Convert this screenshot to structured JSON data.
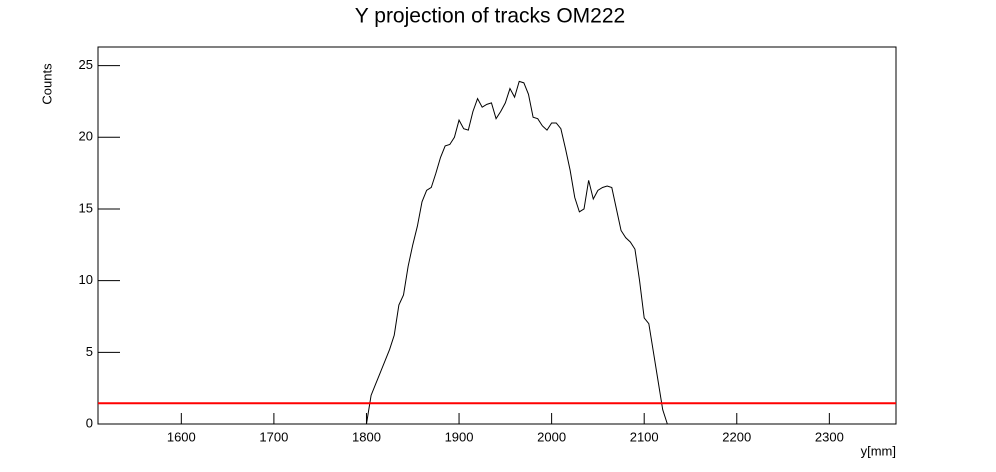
{
  "chart_data": {
    "type": "line",
    "title": "Y projection of tracks OM222",
    "x_label": "y[mm]",
    "y_label": "Counts",
    "x": [
      1800,
      1805,
      1810,
      1815,
      1820,
      1825,
      1830,
      1835,
      1840,
      1845,
      1850,
      1855,
      1860,
      1865,
      1870,
      1875,
      1880,
      1885,
      1890,
      1895,
      1900,
      1905,
      1910,
      1915,
      1920,
      1925,
      1930,
      1935,
      1940,
      1945,
      1950,
      1955,
      1960,
      1965,
      1970,
      1975,
      1980,
      1985,
      1990,
      1995,
      2000,
      2005,
      2010,
      2015,
      2020,
      2025,
      2030,
      2035,
      2040,
      2045,
      2050,
      2055,
      2060,
      2065,
      2070,
      2075,
      2080,
      2085,
      2090,
      2095,
      2100,
      2105,
      2110,
      2115,
      2120,
      2125
    ],
    "series": [
      {
        "name": "Counts",
        "color": "#000000",
        "values": [
          0,
          2.0,
          2.8,
          3.6,
          4.4,
          5.2,
          6.2,
          8.3,
          9.0,
          11.0,
          12.5,
          13.8,
          15.5,
          16.3,
          16.5,
          17.5,
          18.6,
          19.4,
          19.5,
          20.0,
          21.2,
          20.6,
          20.5,
          21.8,
          22.7,
          22.1,
          22.3,
          22.4,
          21.3,
          21.8,
          22.4,
          23.4,
          22.8,
          23.9,
          23.8,
          23.0,
          21.4,
          21.3,
          20.8,
          20.5,
          21.0,
          21.0,
          20.6,
          19.2,
          17.7,
          15.8,
          14.8,
          15.0,
          17.0,
          15.7,
          16.3,
          16.5,
          16.6,
          16.5,
          15.0,
          13.5,
          13.0,
          12.7,
          12.2,
          10.0,
          7.4,
          7.0,
          5.0,
          3.0,
          1.0,
          0
        ]
      }
    ],
    "hline": {
      "value": 1.45,
      "color": "#ff0000"
    },
    "xlim": [
      1510,
      2372
    ],
    "ylim": [
      0,
      26.3
    ],
    "xticks": [
      1600,
      1700,
      1800,
      1900,
      2000,
      2100,
      2200,
      2300
    ],
    "yticks": [
      0,
      5,
      10,
      15,
      20,
      25
    ]
  }
}
